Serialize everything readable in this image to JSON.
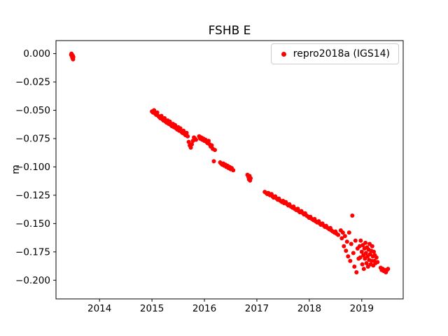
{
  "figure": {
    "title": "FSHB E",
    "background": "#ffffff"
  },
  "legend": {
    "label": "repro2018a (IGS14)",
    "marker_color": "#ff0000",
    "position": "upper right"
  },
  "chart_data": {
    "type": "scatter",
    "title": "FSHB E",
    "xlabel": "",
    "ylabel": "m",
    "grid": false,
    "legend_position": "upper right",
    "marker": "o",
    "marker_size": 3,
    "xlim": [
      2013.17,
      2019.79
    ],
    "ylim": [
      -0.2165,
      0.0115
    ],
    "xticks": [
      2014,
      2015,
      2016,
      2017,
      2018,
      2019
    ],
    "xtick_labels": [
      "2014",
      "2015",
      "2016",
      "2017",
      "2018",
      "2019"
    ],
    "yticks": [
      0.0,
      -0.025,
      -0.05,
      -0.075,
      -0.1,
      -0.125,
      -0.15,
      -0.175,
      -0.2
    ],
    "ytick_labels": [
      "0.000",
      "−0.025",
      "−0.050",
      "−0.075",
      "−0.100",
      "−0.125",
      "−0.150",
      "−0.175",
      "−0.200"
    ],
    "series": [
      {
        "name": "repro2018a (IGS14)",
        "color": "#ff0000",
        "points": [
          [
            2013.46,
            -0.001
          ],
          [
            2013.465,
            0.0
          ],
          [
            2013.47,
            -0.002
          ],
          [
            2013.475,
            -0.001
          ],
          [
            2013.48,
            -0.003
          ],
          [
            2013.485,
            -0.004
          ],
          [
            2013.49,
            -0.002
          ],
          [
            2013.495,
            -0.005
          ],
          [
            2013.5,
            -0.003
          ],
          [
            2015.0,
            -0.051
          ],
          [
            2015.02,
            -0.052
          ],
          [
            2015.04,
            -0.05
          ],
          [
            2015.06,
            -0.053
          ],
          [
            2015.08,
            -0.054
          ],
          [
            2015.1,
            -0.052
          ],
          [
            2015.12,
            -0.055
          ],
          [
            2015.14,
            -0.056
          ],
          [
            2015.16,
            -0.057
          ],
          [
            2015.18,
            -0.055
          ],
          [
            2015.2,
            -0.058
          ],
          [
            2015.22,
            -0.059
          ],
          [
            2015.24,
            -0.057
          ],
          [
            2015.26,
            -0.06
          ],
          [
            2015.28,
            -0.061
          ],
          [
            2015.3,
            -0.059
          ],
          [
            2015.32,
            -0.062
          ],
          [
            2015.34,
            -0.06
          ],
          [
            2015.36,
            -0.063
          ],
          [
            2015.38,
            -0.064
          ],
          [
            2015.4,
            -0.062
          ],
          [
            2015.42,
            -0.065
          ],
          [
            2015.44,
            -0.063
          ],
          [
            2015.46,
            -0.066
          ],
          [
            2015.48,
            -0.067
          ],
          [
            2015.5,
            -0.065
          ],
          [
            2015.52,
            -0.068
          ],
          [
            2015.54,
            -0.066
          ],
          [
            2015.56,
            -0.069
          ],
          [
            2015.58,
            -0.07
          ],
          [
            2015.6,
            -0.068
          ],
          [
            2015.62,
            -0.071
          ],
          [
            2015.64,
            -0.072
          ],
          [
            2015.66,
            -0.07
          ],
          [
            2015.68,
            -0.073
          ],
          [
            2015.7,
            -0.078
          ],
          [
            2015.72,
            -0.081
          ],
          [
            2015.74,
            -0.083
          ],
          [
            2015.76,
            -0.08
          ],
          [
            2015.78,
            -0.077
          ],
          [
            2015.8,
            -0.074
          ],
          [
            2015.82,
            -0.075
          ],
          [
            2015.84,
            -0.076
          ],
          [
            2015.9,
            -0.073
          ],
          [
            2015.92,
            -0.075
          ],
          [
            2015.94,
            -0.074
          ],
          [
            2015.96,
            -0.076
          ],
          [
            2015.98,
            -0.075
          ],
          [
            2016.0,
            -0.077
          ],
          [
            2016.02,
            -0.076
          ],
          [
            2016.04,
            -0.078
          ],
          [
            2016.06,
            -0.079
          ],
          [
            2016.08,
            -0.077
          ],
          [
            2016.1,
            -0.08
          ],
          [
            2016.12,
            -0.082
          ],
          [
            2016.14,
            -0.081
          ],
          [
            2016.16,
            -0.084
          ],
          [
            2016.18,
            -0.095
          ],
          [
            2016.2,
            -0.085
          ],
          [
            2016.3,
            -0.096
          ],
          [
            2016.32,
            -0.097
          ],
          [
            2016.34,
            -0.098
          ],
          [
            2016.36,
            -0.097
          ],
          [
            2016.38,
            -0.099
          ],
          [
            2016.4,
            -0.098
          ],
          [
            2016.42,
            -0.1
          ],
          [
            2016.44,
            -0.099
          ],
          [
            2016.46,
            -0.101
          ],
          [
            2016.48,
            -0.1
          ],
          [
            2016.5,
            -0.102
          ],
          [
            2016.52,
            -0.101
          ],
          [
            2016.55,
            -0.103
          ],
          [
            2016.82,
            -0.107
          ],
          [
            2016.84,
            -0.109
          ],
          [
            2016.85,
            -0.111
          ],
          [
            2016.86,
            -0.108
          ],
          [
            2016.87,
            -0.112
          ],
          [
            2016.88,
            -0.11
          ],
          [
            2017.15,
            -0.122
          ],
          [
            2017.18,
            -0.123
          ],
          [
            2017.2,
            -0.124
          ],
          [
            2017.22,
            -0.123
          ],
          [
            2017.25,
            -0.125
          ],
          [
            2017.28,
            -0.124
          ],
          [
            2017.3,
            -0.126
          ],
          [
            2017.32,
            -0.127
          ],
          [
            2017.35,
            -0.126
          ],
          [
            2017.38,
            -0.128
          ],
          [
            2017.4,
            -0.129
          ],
          [
            2017.42,
            -0.128
          ],
          [
            2017.45,
            -0.13
          ],
          [
            2017.48,
            -0.131
          ],
          [
            2017.5,
            -0.13
          ],
          [
            2017.52,
            -0.132
          ],
          [
            2017.55,
            -0.131
          ],
          [
            2017.58,
            -0.133
          ],
          [
            2017.6,
            -0.134
          ],
          [
            2017.62,
            -0.133
          ],
          [
            2017.65,
            -0.135
          ],
          [
            2017.68,
            -0.136
          ],
          [
            2017.7,
            -0.135
          ],
          [
            2017.72,
            -0.137
          ],
          [
            2017.75,
            -0.138
          ],
          [
            2017.78,
            -0.137
          ],
          [
            2017.8,
            -0.139
          ],
          [
            2017.82,
            -0.14
          ],
          [
            2017.85,
            -0.139
          ],
          [
            2017.88,
            -0.141
          ],
          [
            2017.9,
            -0.142
          ],
          [
            2017.92,
            -0.141
          ],
          [
            2017.95,
            -0.143
          ],
          [
            2017.98,
            -0.144
          ],
          [
            2018.0,
            -0.145
          ],
          [
            2018.02,
            -0.144
          ],
          [
            2018.05,
            -0.146
          ],
          [
            2018.08,
            -0.147
          ],
          [
            2018.1,
            -0.146
          ],
          [
            2018.12,
            -0.148
          ],
          [
            2018.15,
            -0.149
          ],
          [
            2018.18,
            -0.148
          ],
          [
            2018.2,
            -0.15
          ],
          [
            2018.22,
            -0.151
          ],
          [
            2018.25,
            -0.15
          ],
          [
            2018.28,
            -0.152
          ],
          [
            2018.3,
            -0.153
          ],
          [
            2018.32,
            -0.152
          ],
          [
            2018.35,
            -0.154
          ],
          [
            2018.38,
            -0.155
          ],
          [
            2018.4,
            -0.154
          ],
          [
            2018.42,
            -0.156
          ],
          [
            2018.45,
            -0.157
          ],
          [
            2018.48,
            -0.158
          ],
          [
            2018.5,
            -0.157
          ],
          [
            2018.52,
            -0.159
          ],
          [
            2018.55,
            -0.16
          ],
          [
            2018.6,
            -0.156
          ],
          [
            2018.62,
            -0.163
          ],
          [
            2018.64,
            -0.158
          ],
          [
            2018.66,
            -0.17
          ],
          [
            2018.68,
            -0.161
          ],
          [
            2018.7,
            -0.174
          ],
          [
            2018.72,
            -0.166
          ],
          [
            2018.74,
            -0.179
          ],
          [
            2018.76,
            -0.158
          ],
          [
            2018.78,
            -0.183
          ],
          [
            2018.8,
            -0.168
          ],
          [
            2018.82,
            -0.143
          ],
          [
            2018.84,
            -0.176
          ],
          [
            2018.86,
            -0.188
          ],
          [
            2018.88,
            -0.165
          ],
          [
            2018.9,
            -0.193
          ],
          [
            2018.92,
            -0.172
          ],
          [
            2018.94,
            -0.181
          ],
          [
            2018.96,
            -0.17
          ],
          [
            2018.97,
            -0.18
          ],
          [
            2018.98,
            -0.165
          ],
          [
            2019.0,
            -0.175
          ],
          [
            2019.01,
            -0.186
          ],
          [
            2019.02,
            -0.169
          ],
          [
            2019.03,
            -0.178
          ],
          [
            2019.04,
            -0.19
          ],
          [
            2019.05,
            -0.172
          ],
          [
            2019.06,
            -0.181
          ],
          [
            2019.07,
            -0.167
          ],
          [
            2019.08,
            -0.176
          ],
          [
            2019.09,
            -0.185
          ],
          [
            2019.1,
            -0.171
          ],
          [
            2019.11,
            -0.179
          ],
          [
            2019.12,
            -0.188
          ],
          [
            2019.13,
            -0.173
          ],
          [
            2019.14,
            -0.182
          ],
          [
            2019.15,
            -0.168
          ],
          [
            2019.16,
            -0.177
          ],
          [
            2019.17,
            -0.186
          ],
          [
            2019.18,
            -0.174
          ],
          [
            2019.19,
            -0.183
          ],
          [
            2019.2,
            -0.17
          ],
          [
            2019.21,
            -0.179
          ],
          [
            2019.22,
            -0.187
          ],
          [
            2019.23,
            -0.175
          ],
          [
            2019.24,
            -0.183
          ],
          [
            2019.25,
            -0.178
          ],
          [
            2019.26,
            -0.185
          ],
          [
            2019.28,
            -0.18
          ],
          [
            2019.3,
            -0.184
          ],
          [
            2019.36,
            -0.189
          ],
          [
            2019.38,
            -0.191
          ],
          [
            2019.4,
            -0.19
          ],
          [
            2019.42,
            -0.192
          ],
          [
            2019.44,
            -0.191
          ],
          [
            2019.46,
            -0.193
          ],
          [
            2019.48,
            -0.191
          ],
          [
            2019.5,
            -0.19
          ]
        ]
      }
    ]
  }
}
